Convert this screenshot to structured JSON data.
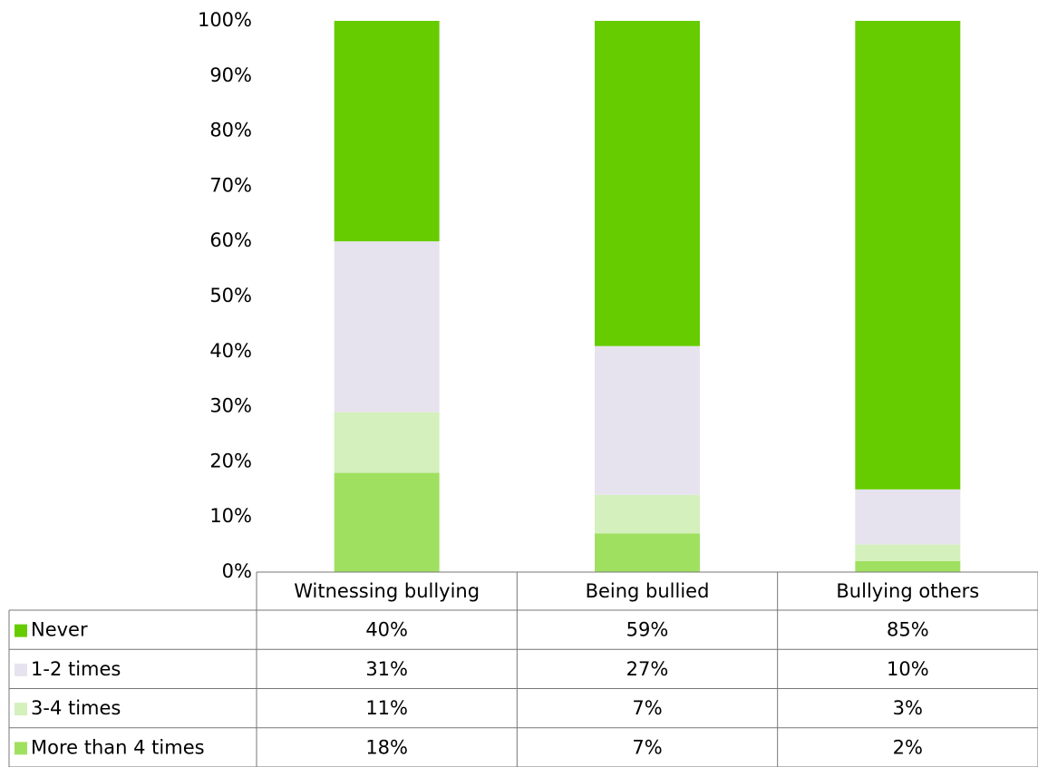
{
  "chart_data": {
    "type": "stacked_bar",
    "categories": [
      "Witnessing bullying",
      "Being bullied",
      "Bullying others"
    ],
    "series": [
      {
        "name": "Never",
        "color": "#66cc00",
        "values": [
          40,
          59,
          85
        ],
        "value_labels": [
          "40%",
          "59%",
          "85%"
        ]
      },
      {
        "name": "1-2 times",
        "color": "#e6e3ee",
        "values": [
          31,
          27,
          10
        ],
        "value_labels": [
          "31%",
          "27%",
          "10%"
        ]
      },
      {
        "name": "3-4 times",
        "color": "#d4f0bc",
        "values": [
          11,
          7,
          3
        ],
        "value_labels": [
          "11%",
          "7%",
          "3%"
        ]
      },
      {
        "name": "More than 4 times",
        "color": "#a0e060",
        "values": [
          18,
          7,
          2
        ],
        "value_labels": [
          "18%",
          "7%",
          "2%"
        ]
      }
    ],
    "ylim": [
      0,
      100
    ],
    "yticks": [
      {
        "value": 0,
        "label": "0%"
      },
      {
        "value": 10,
        "label": "10%"
      },
      {
        "value": 20,
        "label": "20%"
      },
      {
        "value": 30,
        "label": "30%"
      },
      {
        "value": 40,
        "label": "40%"
      },
      {
        "value": 50,
        "label": "50%"
      },
      {
        "value": 60,
        "label": "60%"
      },
      {
        "value": 70,
        "label": "70%"
      },
      {
        "value": 80,
        "label": "80%"
      },
      {
        "value": 90,
        "label": "90%"
      },
      {
        "value": 100,
        "label": "100%"
      }
    ],
    "grid": false
  }
}
